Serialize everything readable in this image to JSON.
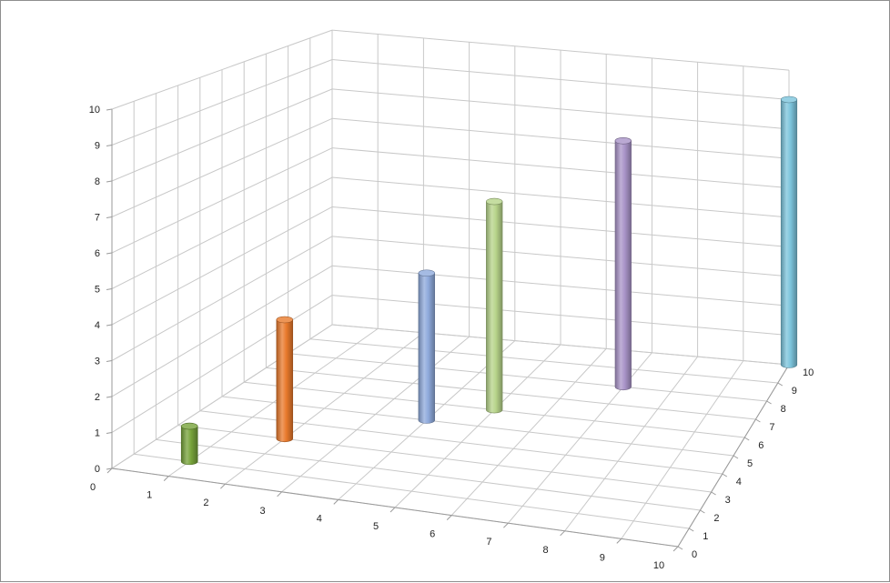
{
  "chart_data": {
    "type": "bar3d-cylinder",
    "title": "",
    "x_ticks": [
      "0",
      "1",
      "2",
      "3",
      "4",
      "5",
      "6",
      "7",
      "8",
      "9",
      "10"
    ],
    "y_ticks": [
      "0",
      "1",
      "2",
      "3",
      "4",
      "5",
      "6",
      "7",
      "8",
      "9",
      "10"
    ],
    "z_ticks": [
      "0",
      "1",
      "2",
      "3",
      "4",
      "5",
      "6",
      "7",
      "8",
      "9",
      "10"
    ],
    "xlim": [
      0,
      10
    ],
    "ylim": [
      0,
      10
    ],
    "zlim": [
      0,
      10
    ],
    "grid": true,
    "legend": "none",
    "points": [
      {
        "x": 1,
        "y": 1,
        "z": 1,
        "color": "#77a33a"
      },
      {
        "x": 2,
        "y": 3,
        "z": 3.5,
        "color": "#e97a2c"
      },
      {
        "x": 4,
        "y": 5,
        "z": 4.5,
        "color": "#8faadc"
      },
      {
        "x": 5,
        "y": 6,
        "z": 6.5,
        "color": "#b7d48a"
      },
      {
        "x": 7,
        "y": 8,
        "z": 8,
        "color": "#a994c8"
      },
      {
        "x": 10,
        "y": 10,
        "z": 9,
        "color": "#7cc4dc"
      }
    ]
  }
}
